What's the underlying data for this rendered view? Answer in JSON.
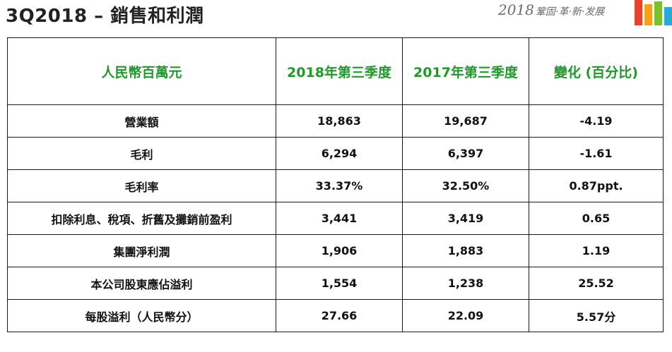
{
  "title": "3Q2018 – 銷售和利潤",
  "logo": {
    "year": "2018",
    "slogan": "鞏固·革·新·发展",
    "bar_colors": [
      "#e8412c",
      "#f7a11a",
      "#7cbf2f",
      "#2aa8d8"
    ]
  },
  "colors": {
    "header_text": "#1f9a2a"
  },
  "table": {
    "headers": [
      "人民幣百萬元",
      "2018年第三季度",
      "2017年第三季度",
      "變化 (百分比)"
    ],
    "rows": [
      [
        "營業額",
        "18,863",
        "19,687",
        "-4.19"
      ],
      [
        "毛利",
        "6,294",
        "6,397",
        "-1.61"
      ],
      [
        "毛利率",
        "33.37%",
        "32.50%",
        "0.87ppt."
      ],
      [
        "扣除利息、稅項、折舊及攤銷前盈利",
        "3,441",
        "3,419",
        "0.65"
      ],
      [
        "集團淨利潤",
        "1,906",
        "1,883",
        "1.19"
      ],
      [
        "本公司股東應佔溢利",
        "1,554",
        "1,238",
        "25.52"
      ],
      [
        "每股溢利（人民幣分）",
        "27.66",
        "22.09",
        "5.57分"
      ]
    ]
  }
}
